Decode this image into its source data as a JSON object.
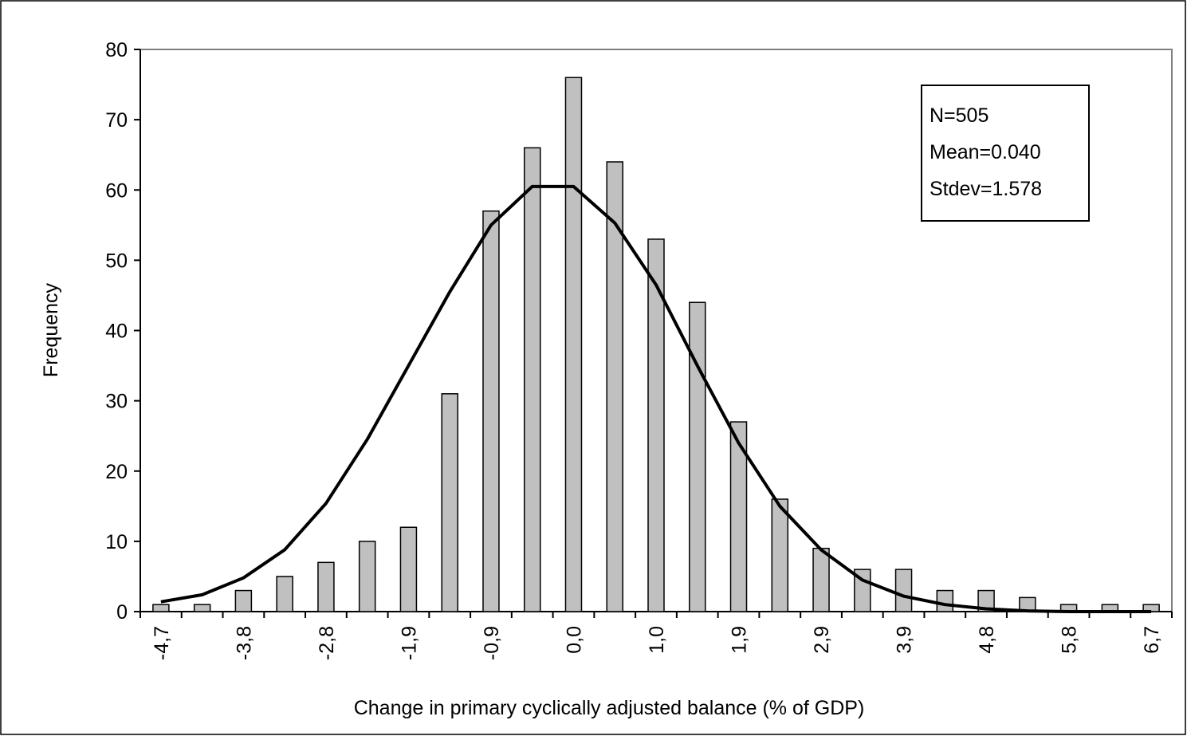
{
  "chart_data": {
    "type": "bar",
    "x_label": "Change in primary cyclically adjusted balance (% of GDP)",
    "y_label": "Frequency",
    "annotations": [
      "N=505",
      "Mean=0.040",
      "Stdev=1.578"
    ],
    "categories": [
      "-4,7",
      null,
      "-3,8",
      null,
      "-2,8",
      null,
      "-1,9",
      null,
      "-0,9",
      null,
      "0,0",
      null,
      "1,0",
      null,
      "1,9",
      null,
      "2,9",
      null,
      "3,9",
      null,
      "4,8",
      null,
      "5,8",
      null,
      "6,7"
    ],
    "series": [
      {
        "type": "bar",
        "color": "#c0c0c0",
        "values": [
          1,
          1,
          3,
          5,
          7,
          10,
          12,
          31,
          57,
          66,
          76,
          64,
          53,
          44,
          27,
          16,
          9,
          6,
          6,
          3,
          3,
          2,
          1,
          1,
          1
        ]
      },
      {
        "type": "line",
        "color": "#000000",
        "values": [
          1.4,
          2.4,
          4.8,
          8.8,
          15.4,
          24.5,
          35,
          45.5,
          55,
          60.5,
          60.5,
          55.3,
          46.5,
          35,
          24,
          15,
          8.8,
          4.5,
          2.2,
          1,
          0.4,
          0.1,
          0,
          0,
          0
        ]
      }
    ],
    "ylim": [
      0,
      80
    ],
    "yticks": [
      0,
      10,
      20,
      30,
      40,
      50,
      60,
      70,
      80
    ]
  }
}
